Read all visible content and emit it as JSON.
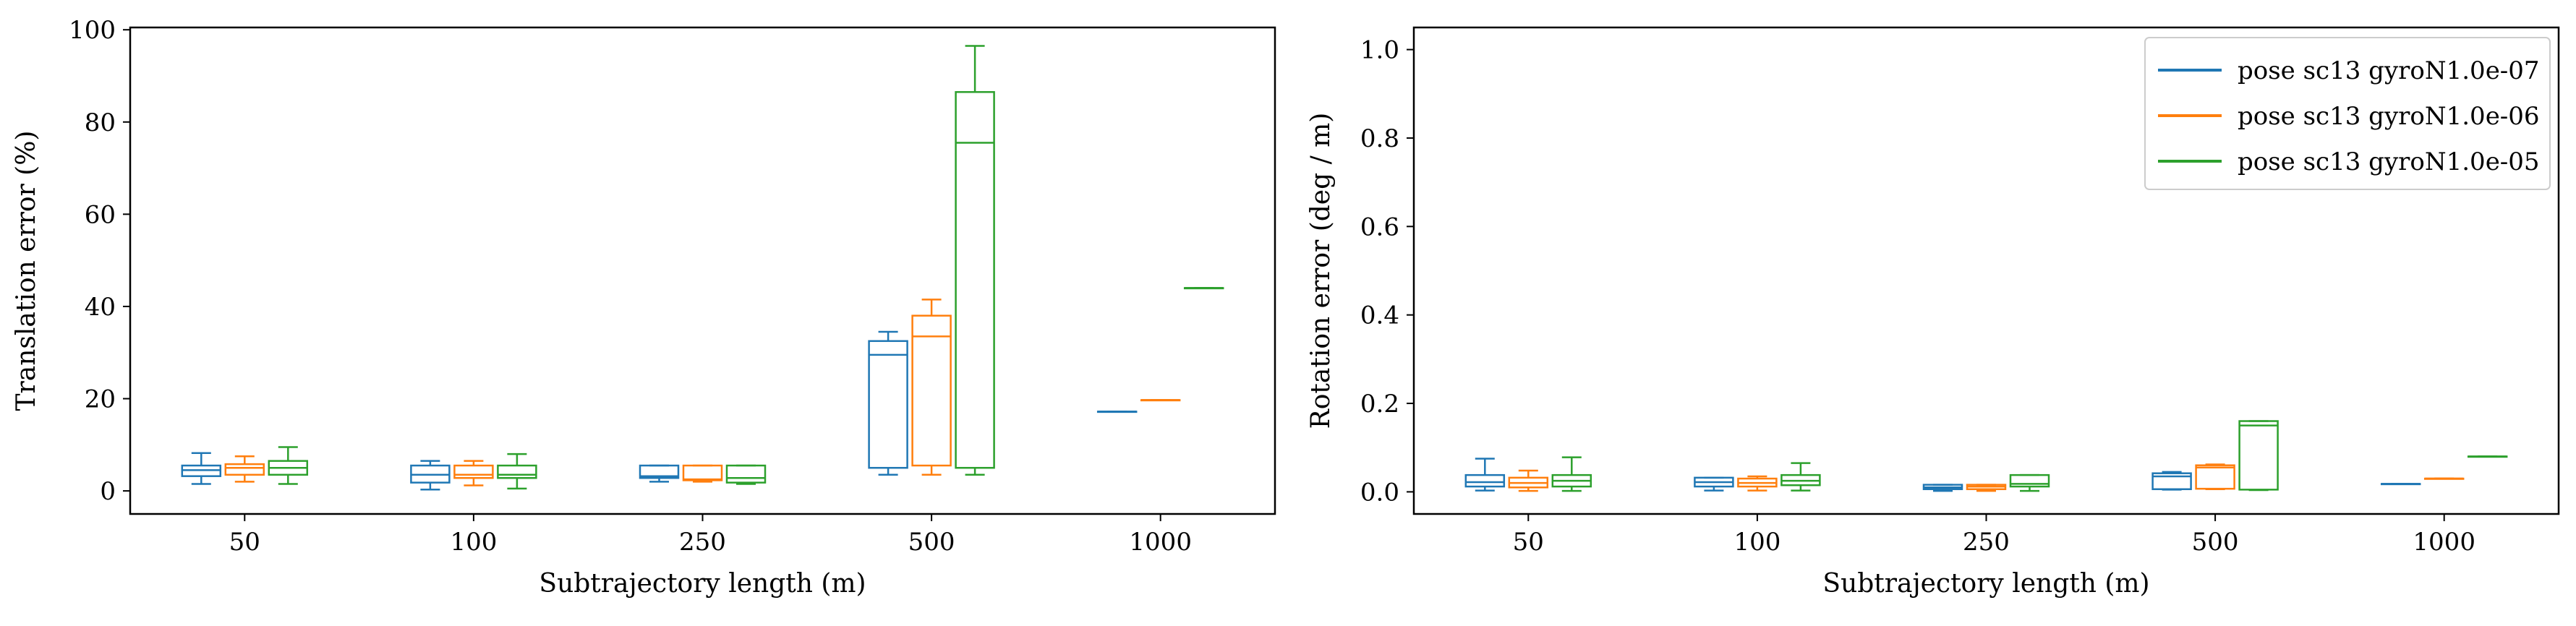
{
  "chart_data": [
    {
      "type": "box",
      "title": "",
      "xlabel": "Subtrajectory length (m)",
      "ylabel": "Translation error (%)",
      "categories": [
        "50",
        "100",
        "250",
        "500",
        "1000"
      ],
      "ylim": [
        -5,
        100.5
      ],
      "yticks": [
        0,
        20,
        40,
        60,
        80,
        100
      ],
      "grid": false,
      "legend": null,
      "series": [
        {
          "name": "pose sc13 gyroN1.0e-07",
          "color": "#1f77b4",
          "boxes": [
            {
              "whislo": 1.5,
              "q1": 3.2,
              "med": 4.5,
              "q3": 5.5,
              "whishi": 8.2
            },
            {
              "whislo": 0.3,
              "q1": 1.8,
              "med": 3.5,
              "q3": 5.5,
              "whishi": 6.5
            },
            {
              "whislo": 2.0,
              "q1": 2.8,
              "med": 3.2,
              "q3": 5.5,
              "whishi": 5.5
            },
            {
              "whislo": 3.5,
              "q1": 5.0,
              "med": 29.5,
              "q3": 32.5,
              "whishi": 34.5
            },
            {
              "whislo": 17.2,
              "q1": 17.2,
              "med": 17.2,
              "q3": 17.2,
              "whishi": 17.2
            }
          ]
        },
        {
          "name": "pose sc13 gyroN1.0e-06",
          "color": "#ff7f0e",
          "boxes": [
            {
              "whislo": 2.0,
              "q1": 3.5,
              "med": 5.0,
              "q3": 5.8,
              "whishi": 7.5
            },
            {
              "whislo": 1.2,
              "q1": 2.8,
              "med": 3.5,
              "q3": 5.5,
              "whishi": 6.5
            },
            {
              "whislo": 2.0,
              "q1": 2.3,
              "med": 2.5,
              "q3": 5.5,
              "whishi": 5.5
            },
            {
              "whislo": 3.5,
              "q1": 5.5,
              "med": 33.5,
              "q3": 38.0,
              "whishi": 41.5
            },
            {
              "whislo": 19.7,
              "q1": 19.7,
              "med": 19.7,
              "q3": 19.7,
              "whishi": 19.7
            }
          ]
        },
        {
          "name": "pose sc13 gyroN1.0e-05",
          "color": "#2ca02c",
          "boxes": [
            {
              "whislo": 1.5,
              "q1": 3.5,
              "med": 5.0,
              "q3": 6.5,
              "whishi": 9.5
            },
            {
              "whislo": 0.5,
              "q1": 2.8,
              "med": 3.5,
              "q3": 5.5,
              "whishi": 8.0
            },
            {
              "whislo": 1.5,
              "q1": 1.8,
              "med": 2.8,
              "q3": 5.5,
              "whishi": 5.5
            },
            {
              "whislo": 3.5,
              "q1": 5.0,
              "med": 75.5,
              "q3": 86.5,
              "whishi": 96.5
            },
            {
              "whislo": 44.0,
              "q1": 44.0,
              "med": 44.0,
              "q3": 44.0,
              "whishi": 44.0
            }
          ]
        }
      ]
    },
    {
      "type": "box",
      "title": "",
      "xlabel": "Subtrajectory length (m)",
      "ylabel": "Rotation error (deg / m)",
      "categories": [
        "50",
        "100",
        "250",
        "500",
        "1000"
      ],
      "ylim": [
        -0.05,
        1.05
      ],
      "yticks": [
        0.0,
        0.2,
        0.4,
        0.6,
        0.8,
        1.0
      ],
      "ytick_labels": [
        "0.0",
        "0.2",
        "0.4",
        "0.6",
        "0.8",
        "1.0"
      ],
      "grid": false,
      "legend": "top-right",
      "series": [
        {
          "name": "pose sc13 gyroN1.0e-07",
          "color": "#1f77b4",
          "boxes": [
            {
              "whislo": 0.003,
              "q1": 0.012,
              "med": 0.022,
              "q3": 0.038,
              "whishi": 0.075
            },
            {
              "whislo": 0.003,
              "q1": 0.012,
              "med": 0.022,
              "q3": 0.032,
              "whishi": 0.032
            },
            {
              "whislo": 0.002,
              "q1": 0.006,
              "med": 0.01,
              "q3": 0.016,
              "whishi": 0.016
            },
            {
              "whislo": 0.005,
              "q1": 0.006,
              "med": 0.035,
              "q3": 0.042,
              "whishi": 0.045
            },
            {
              "whislo": 0.018,
              "q1": 0.018,
              "med": 0.018,
              "q3": 0.018,
              "whishi": 0.018
            }
          ]
        },
        {
          "name": "pose sc13 gyroN1.0e-06",
          "color": "#ff7f0e",
          "boxes": [
            {
              "whislo": 0.002,
              "q1": 0.01,
              "med": 0.02,
              "q3": 0.032,
              "whishi": 0.048
            },
            {
              "whislo": 0.003,
              "q1": 0.012,
              "med": 0.02,
              "q3": 0.03,
              "whishi": 0.035
            },
            {
              "whislo": 0.002,
              "q1": 0.006,
              "med": 0.012,
              "q3": 0.016,
              "whishi": 0.016
            },
            {
              "whislo": 0.006,
              "q1": 0.007,
              "med": 0.055,
              "q3": 0.06,
              "whishi": 0.062
            },
            {
              "whislo": 0.03,
              "q1": 0.03,
              "med": 0.03,
              "q3": 0.03,
              "whishi": 0.03
            }
          ]
        },
        {
          "name": "pose sc13 gyroN1.0e-05",
          "color": "#2ca02c",
          "boxes": [
            {
              "whislo": 0.002,
              "q1": 0.012,
              "med": 0.025,
              "q3": 0.038,
              "whishi": 0.078
            },
            {
              "whislo": 0.003,
              "q1": 0.015,
              "med": 0.025,
              "q3": 0.038,
              "whishi": 0.065
            },
            {
              "whislo": 0.002,
              "q1": 0.012,
              "med": 0.018,
              "q3": 0.038,
              "whishi": 0.038
            },
            {
              "whislo": 0.004,
              "q1": 0.005,
              "med": 0.15,
              "q3": 0.16,
              "whishi": 0.16
            },
            {
              "whislo": 0.08,
              "q1": 0.08,
              "med": 0.08,
              "q3": 0.08,
              "whishi": 0.08
            }
          ]
        }
      ]
    }
  ]
}
